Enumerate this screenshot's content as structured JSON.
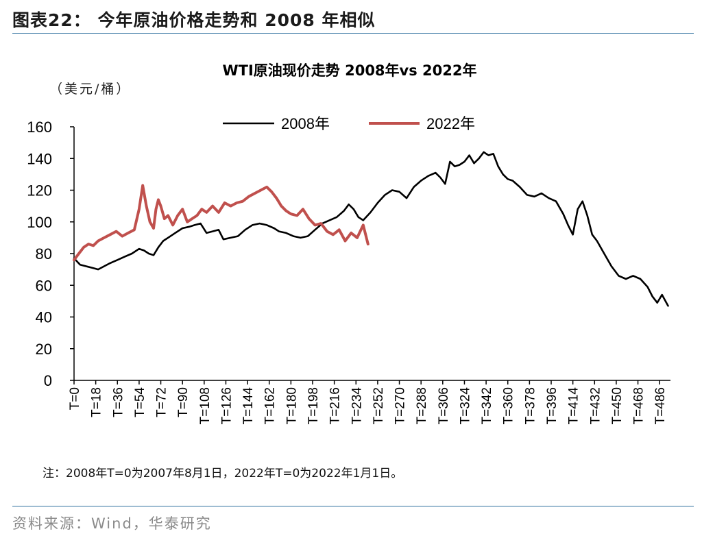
{
  "figure_title": "图表22：   今年原油价格走势和 2008 年相似",
  "note": "注：2008年T=0为2007年8月1日，2022年T=0为2022年1月1日。",
  "source": "资料来源：Wind，华泰研究",
  "colors": {
    "series_2008": "#000000",
    "series_2022": "#c0504d",
    "rule": "#2e6f9e"
  },
  "chart_data": {
    "type": "line",
    "title": "WTI原油现价走势 2008年vs 2022年",
    "ylabel": "（美元/桶）",
    "xlabel": "",
    "ylim": [
      0,
      160
    ],
    "yticks": [
      0,
      20,
      40,
      60,
      80,
      100,
      120,
      140,
      160
    ],
    "xlim": [
      0,
      495
    ],
    "xticks": [
      0,
      18,
      36,
      54,
      72,
      90,
      108,
      126,
      144,
      162,
      180,
      198,
      216,
      234,
      252,
      270,
      288,
      306,
      324,
      342,
      360,
      378,
      396,
      414,
      432,
      450,
      468,
      486
    ],
    "xtick_prefix": "T=",
    "legend_position": "top",
    "grid": false,
    "series": [
      {
        "name": "2008年",
        "x": [
          0,
          5,
          10,
          15,
          20,
          25,
          30,
          36,
          42,
          48,
          54,
          58,
          62,
          66,
          70,
          74,
          78,
          84,
          90,
          96,
          100,
          105,
          110,
          115,
          120,
          124,
          130,
          136,
          142,
          148,
          154,
          160,
          166,
          170,
          176,
          182,
          188,
          194,
          200,
          206,
          212,
          218,
          224,
          228,
          232,
          236,
          240,
          246,
          252,
          258,
          264,
          270,
          276,
          282,
          288,
          294,
          300,
          304,
          308,
          312,
          316,
          320,
          324,
          328,
          332,
          336,
          340,
          344,
          348,
          352,
          356,
          360,
          364,
          370,
          376,
          382,
          388,
          394,
          400,
          406,
          410,
          414,
          418,
          422,
          426,
          430,
          434,
          440,
          446,
          452,
          458,
          464,
          470,
          476,
          480,
          484,
          488,
          493
        ],
        "values": [
          77,
          73,
          72,
          71,
          70,
          72,
          74,
          76,
          78,
          80,
          83,
          82,
          80,
          79,
          84,
          88,
          90,
          93,
          96,
          97,
          98,
          99,
          93,
          94,
          95,
          89,
          90,
          91,
          95,
          98,
          99,
          98,
          96,
          94,
          93,
          91,
          90,
          91,
          95,
          99,
          101,
          103,
          107,
          111,
          108,
          103,
          101,
          106,
          112,
          117,
          120,
          119,
          115,
          122,
          126,
          129,
          131,
          128,
          124,
          138,
          135,
          136,
          138,
          142,
          137,
          140,
          144,
          142,
          143,
          135,
          130,
          127,
          126,
          122,
          117,
          116,
          118,
          115,
          113,
          105,
          98,
          92,
          108,
          113,
          104,
          92,
          88,
          80,
          72,
          66,
          64,
          66,
          64,
          59,
          53,
          49,
          54,
          47
        ]
      },
      {
        "name": "2022年",
        "x": [
          0,
          4,
          8,
          12,
          16,
          20,
          25,
          30,
          35,
          40,
          45,
          50,
          54,
          57,
          60,
          63,
          66,
          68,
          70,
          72,
          75,
          78,
          82,
          86,
          90,
          94,
          98,
          102,
          106,
          110,
          115,
          120,
          125,
          130,
          135,
          140,
          145,
          150,
          155,
          160,
          164,
          168,
          172,
          176,
          180,
          185,
          190,
          195,
          200,
          205,
          210,
          215,
          220,
          225,
          230,
          235,
          240,
          244
        ],
        "values": [
          76,
          80,
          84,
          86,
          85,
          88,
          90,
          92,
          94,
          91,
          93,
          95,
          108,
          123,
          110,
          100,
          96,
          108,
          114,
          110,
          102,
          104,
          98,
          104,
          108,
          100,
          102,
          104,
          108,
          106,
          110,
          106,
          112,
          110,
          112,
          113,
          116,
          118,
          120,
          122,
          119,
          115,
          110,
          107,
          105,
          104,
          108,
          102,
          98,
          99,
          94,
          92,
          95,
          88,
          93,
          90,
          98,
          86
        ]
      }
    ]
  }
}
